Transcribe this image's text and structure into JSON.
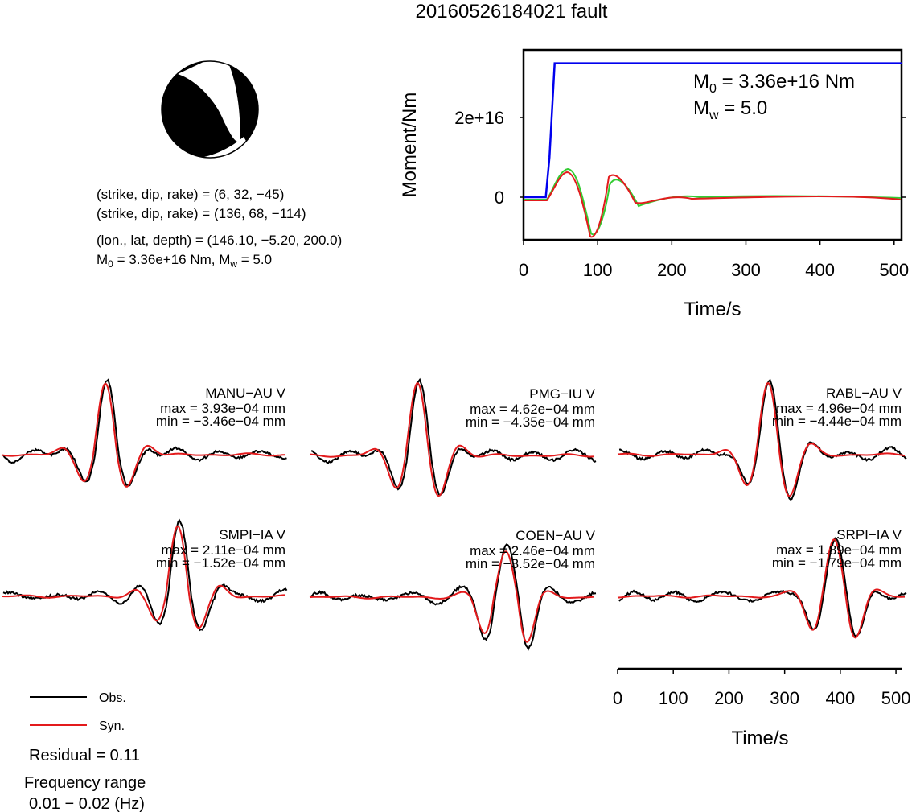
{
  "title": "20160526184021 fault",
  "mechanism": {
    "plane1": "(strike, dip, rake) = (6, 32, −45)",
    "plane2": "(strike, dip, rake) = (136, 68, −114)",
    "location": "(lon., lat, depth) = (146.10, −5.20, 200.0)",
    "moment_prefix": "M",
    "moment_sub": "0",
    "moment_rest": " = 3.36e+16 Nm, M",
    "mw_sub": "w",
    "mw_rest": " = 5.0"
  },
  "moment_panel": {
    "m0_prefix": "M",
    "m0_sub": "0",
    "m0_rest": " = 3.36e+16 Nm",
    "mw_prefix": "M",
    "mw_sub": "w",
    "mw_rest": " = 5.0"
  },
  "legend": {
    "obs": "Obs.",
    "syn": "Syn."
  },
  "residual": "Residual = 0.11",
  "freq_title": "Frequency range",
  "freq_value": "0.01 − 0.02 (Hz)",
  "colors": {
    "obs": "#000000",
    "syn": "#e31a1c",
    "moment": "#0000ee",
    "rate": "#33cc33",
    "frame": "#000000"
  },
  "chart_data": [
    {
      "type": "line",
      "xlabel": "Time/s",
      "ylabel": "Moment/Nm",
      "xlim": [
        0,
        510
      ],
      "xticks": [
        "0",
        "100",
        "200",
        "300",
        "400",
        "500"
      ],
      "yticks": [
        "0",
        "2e+16"
      ],
      "series": [
        {
          "color": "blue",
          "x": [
            0,
            30,
            35,
            42,
            510
          ],
          "y": [
            0,
            0,
            1e+16,
            3.36e+16,
            3.36e+16
          ]
        }
      ]
    },
    {
      "type": "line",
      "xlabel": "Time/s",
      "xlim": [
        0,
        510
      ],
      "xticks": [
        "0",
        "100",
        "200",
        "300",
        "400",
        "500"
      ],
      "stations": [
        {
          "name": "MANU−AU V",
          "max": "max = 3.93e−04 mm",
          "min": "min = −3.46e−04 mm"
        },
        {
          "name": "PMG−IU V",
          "max": "max = 4.62e−04 mm",
          "min": "min = −4.35e−04 mm"
        },
        {
          "name": "RABL−AU V",
          "max": "max = 4.96e−04 mm",
          "min": "min = −4.44e−04 mm"
        },
        {
          "name": "SMPI−IA V",
          "max": "max = 2.11e−04 mm",
          "min": "min = −1.52e−04 mm"
        },
        {
          "name": "COEN−AU V",
          "max": "max = 2.46e−04 mm",
          "min": "min = −3.52e−04 mm"
        },
        {
          "name": "SRPI−IA V",
          "max": "max = 1.89e−04 mm",
          "min": "min = −1.79e−04 mm"
        }
      ]
    }
  ]
}
